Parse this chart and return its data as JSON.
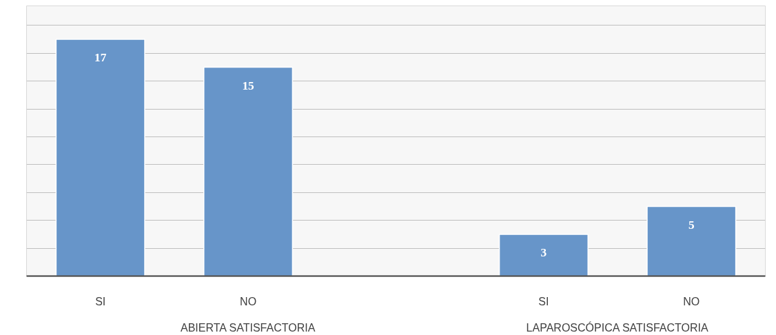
{
  "chart_data": {
    "type": "bar",
    "categories": [
      "SI",
      "NO",
      null,
      "SI",
      "NO"
    ],
    "values": [
      17,
      15,
      null,
      3,
      5
    ],
    "color": "#6795c9",
    "data_labels": true,
    "ylim": [
      0,
      19.4
    ],
    "yticks": [
      {
        "value": 0,
        "label": null
      },
      {
        "value": 2,
        "label": null
      },
      {
        "value": 4,
        "label": null
      },
      {
        "value": 6,
        "label": null
      },
      {
        "value": 8,
        "label": null
      },
      {
        "value": 10,
        "label": null
      },
      {
        "value": 12,
        "label": null
      },
      {
        "value": 14,
        "label": null
      },
      {
        "value": 16,
        "label": null
      },
      {
        "value": 18,
        "label": null
      }
    ],
    "grid": "y",
    "tick_labels": "x",
    "annotations": [
      "ABIERTA SATISFACTORIA",
      "LAPAROSCÓPICA SATISFACTORIA"
    ]
  }
}
